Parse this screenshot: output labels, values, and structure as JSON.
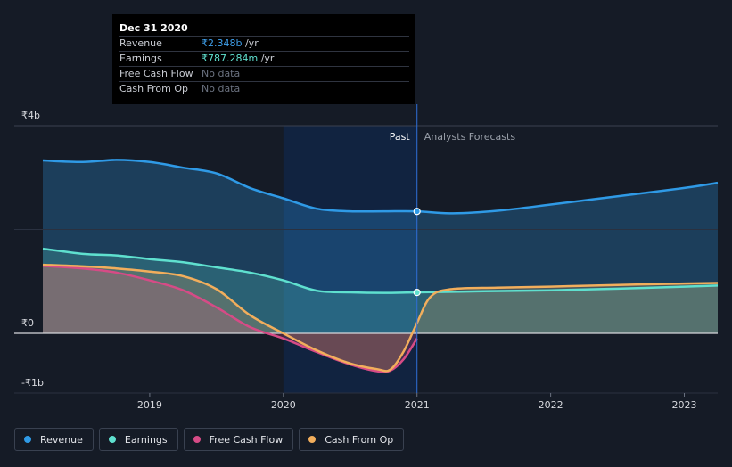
{
  "colors": {
    "revenue": "#2f9ae6",
    "earnings": "#5fe0cf",
    "free_cash_flow": "#d64b86",
    "cash_from_op": "#f2ae5c"
  },
  "tooltip": {
    "date": "Dec 31 2020",
    "rows": [
      {
        "label": "Revenue",
        "value": "₹2.348b",
        "unit": " /yr",
        "color": "#3fa0ec"
      },
      {
        "label": "Earnings",
        "value": "₹787.284m",
        "unit": " /yr",
        "color": "#5fe0cf"
      },
      {
        "label": "Free Cash Flow",
        "value": "No data",
        "unit": "",
        "color": ""
      },
      {
        "label": "Cash From Op",
        "value": "No data",
        "unit": "",
        "color": ""
      }
    ]
  },
  "legend": [
    {
      "label": "Revenue",
      "color": "#2f9ae6"
    },
    {
      "label": "Earnings",
      "color": "#5fe0cf"
    },
    {
      "label": "Free Cash Flow",
      "color": "#d64b86"
    },
    {
      "label": "Cash From Op",
      "color": "#f2ae5c"
    }
  ],
  "chart_data": {
    "type": "area",
    "title": "",
    "xlabel": "",
    "ylabel": "",
    "y_tick_labels": [
      {
        "value": 4,
        "label": "₹4b"
      },
      {
        "value": 0,
        "label": "₹0"
      },
      {
        "value": -1,
        "label": "-₹1b"
      }
    ],
    "x_tick_labels": [
      {
        "value": 2019,
        "label": "2019"
      },
      {
        "value": 2020,
        "label": "2020"
      },
      {
        "value": 2021,
        "label": "2021"
      },
      {
        "value": 2022,
        "label": "2022"
      },
      {
        "value": 2023,
        "label": "2023"
      }
    ],
    "xlim": [
      2018.2,
      2023.25
    ],
    "ylim": [
      -1,
      4
    ],
    "divider_x": 2021.0,
    "past_label": "Past",
    "forecast_label": "Analysts Forecasts",
    "highlight_range": [
      2020.0,
      2021.0
    ],
    "series": [
      {
        "name": "Revenue",
        "key": "revenue",
        "x": [
          2018.2,
          2018.5,
          2018.75,
          2019.0,
          2019.25,
          2019.5,
          2019.75,
          2020.0,
          2020.25,
          2020.5,
          2020.75,
          2021.0,
          2021.25,
          2021.6,
          2022.0,
          2022.5,
          2023.0,
          2023.25
        ],
        "y": [
          3.33,
          3.3,
          3.34,
          3.3,
          3.19,
          3.08,
          2.8,
          2.6,
          2.4,
          2.35,
          2.35,
          2.35,
          2.31,
          2.36,
          2.48,
          2.64,
          2.8,
          2.9
        ]
      },
      {
        "name": "Earnings",
        "key": "earnings",
        "x": [
          2018.2,
          2018.5,
          2018.75,
          2019.0,
          2019.25,
          2019.5,
          2019.75,
          2020.0,
          2020.25,
          2020.5,
          2020.75,
          2021.0,
          2021.5,
          2022.0,
          2022.5,
          2023.0,
          2023.25
        ],
        "y": [
          1.63,
          1.53,
          1.5,
          1.43,
          1.37,
          1.27,
          1.17,
          1.02,
          0.82,
          0.79,
          0.78,
          0.79,
          0.81,
          0.83,
          0.86,
          0.9,
          0.92
        ]
      },
      {
        "name": "Free Cash Flow",
        "key": "free_cash_flow",
        "x": [
          2018.2,
          2018.5,
          2018.75,
          2019.0,
          2019.25,
          2019.5,
          2019.75,
          2020.0,
          2020.25,
          2020.5,
          2020.7,
          2020.8,
          2020.9,
          2021.0
        ],
        "y": [
          1.3,
          1.25,
          1.17,
          1.02,
          0.83,
          0.5,
          0.12,
          -0.1,
          -0.36,
          -0.6,
          -0.73,
          -0.72,
          -0.5,
          -0.1
        ]
      },
      {
        "name": "Cash From Op",
        "key": "cash_from_op",
        "x": [
          2018.2,
          2018.5,
          2018.75,
          2019.0,
          2019.25,
          2019.5,
          2019.75,
          2020.0,
          2020.25,
          2020.5,
          2020.7,
          2020.8,
          2020.9,
          2021.0,
          2021.1,
          2021.25,
          2021.6,
          2022.0,
          2022.5,
          2023.0,
          2023.25
        ],
        "y": [
          1.32,
          1.29,
          1.25,
          1.19,
          1.1,
          0.85,
          0.35,
          0.0,
          -0.33,
          -0.58,
          -0.69,
          -0.7,
          -0.35,
          0.2,
          0.7,
          0.85,
          0.88,
          0.9,
          0.93,
          0.96,
          0.97
        ]
      }
    ],
    "markers": [
      {
        "series": "Revenue",
        "x": 2021.0,
        "y": 2.348
      },
      {
        "series": "Earnings",
        "x": 2021.0,
        "y": 0.787
      }
    ]
  }
}
